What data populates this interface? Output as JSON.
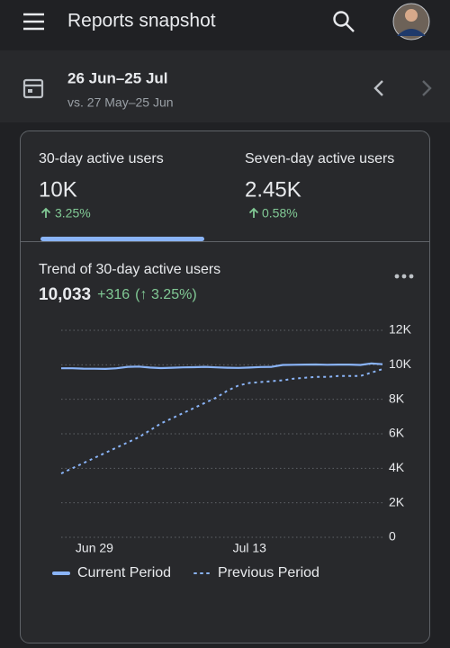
{
  "header": {
    "title": "Reports snapshot"
  },
  "date_range": {
    "current": "26 Jun–25 Jul",
    "comparison": "vs. 27 May–25 Jun"
  },
  "metrics": [
    {
      "label": "30-day active users",
      "value": "10K",
      "change": "3.25%"
    },
    {
      "label": "Seven-day active users",
      "value": "2.45K",
      "change": "0.58%"
    }
  ],
  "trend": {
    "title": "Trend of 30-day active users",
    "value": "10,033",
    "delta": "+316",
    "change": "(↑ 3.25%)"
  },
  "chart_data": {
    "type": "line",
    "categories": [
      null,
      null,
      null,
      "Jun 29",
      null,
      null,
      null,
      null,
      null,
      null,
      null,
      null,
      null,
      null,
      null,
      null,
      null,
      "Jul 13",
      null,
      null,
      null,
      null,
      null,
      null,
      null,
      null,
      null,
      null,
      null,
      null
    ],
    "series": [
      {
        "name": "Current Period",
        "color": "#8ab4f8",
        "line_style": "solid",
        "values": [
          9800,
          9800,
          9780,
          9770,
          9760,
          9800,
          9880,
          9900,
          9840,
          9810,
          9830,
          9850,
          9860,
          9880,
          9850,
          9830,
          9820,
          9840,
          9870,
          9880,
          9990,
          10000,
          10010,
          10020,
          10000,
          10010,
          10010,
          9990,
          10080,
          10033
        ]
      },
      {
        "name": "Previous Period",
        "color": "#8ab4f8",
        "line_style": "dotted",
        "values": [
          3700,
          4000,
          4300,
          4600,
          4900,
          5200,
          5500,
          5800,
          6200,
          6600,
          6900,
          7200,
          7500,
          7800,
          8100,
          8500,
          8800,
          8950,
          9000,
          9050,
          9100,
          9200,
          9250,
          9300,
          9300,
          9350,
          9350,
          9350,
          9550,
          9750
        ]
      }
    ],
    "ylim": [
      0,
      12000
    ],
    "yticks": [
      0,
      {
        "value": 2000,
        "label": "2K"
      },
      {
        "value": 4000,
        "label": "4K"
      },
      {
        "value": 6000,
        "label": "6K"
      },
      {
        "value": 8000,
        "label": "8K"
      },
      {
        "value": 10000,
        "label": "10K"
      },
      {
        "value": 12000,
        "label": "12K"
      }
    ],
    "grid": true
  }
}
